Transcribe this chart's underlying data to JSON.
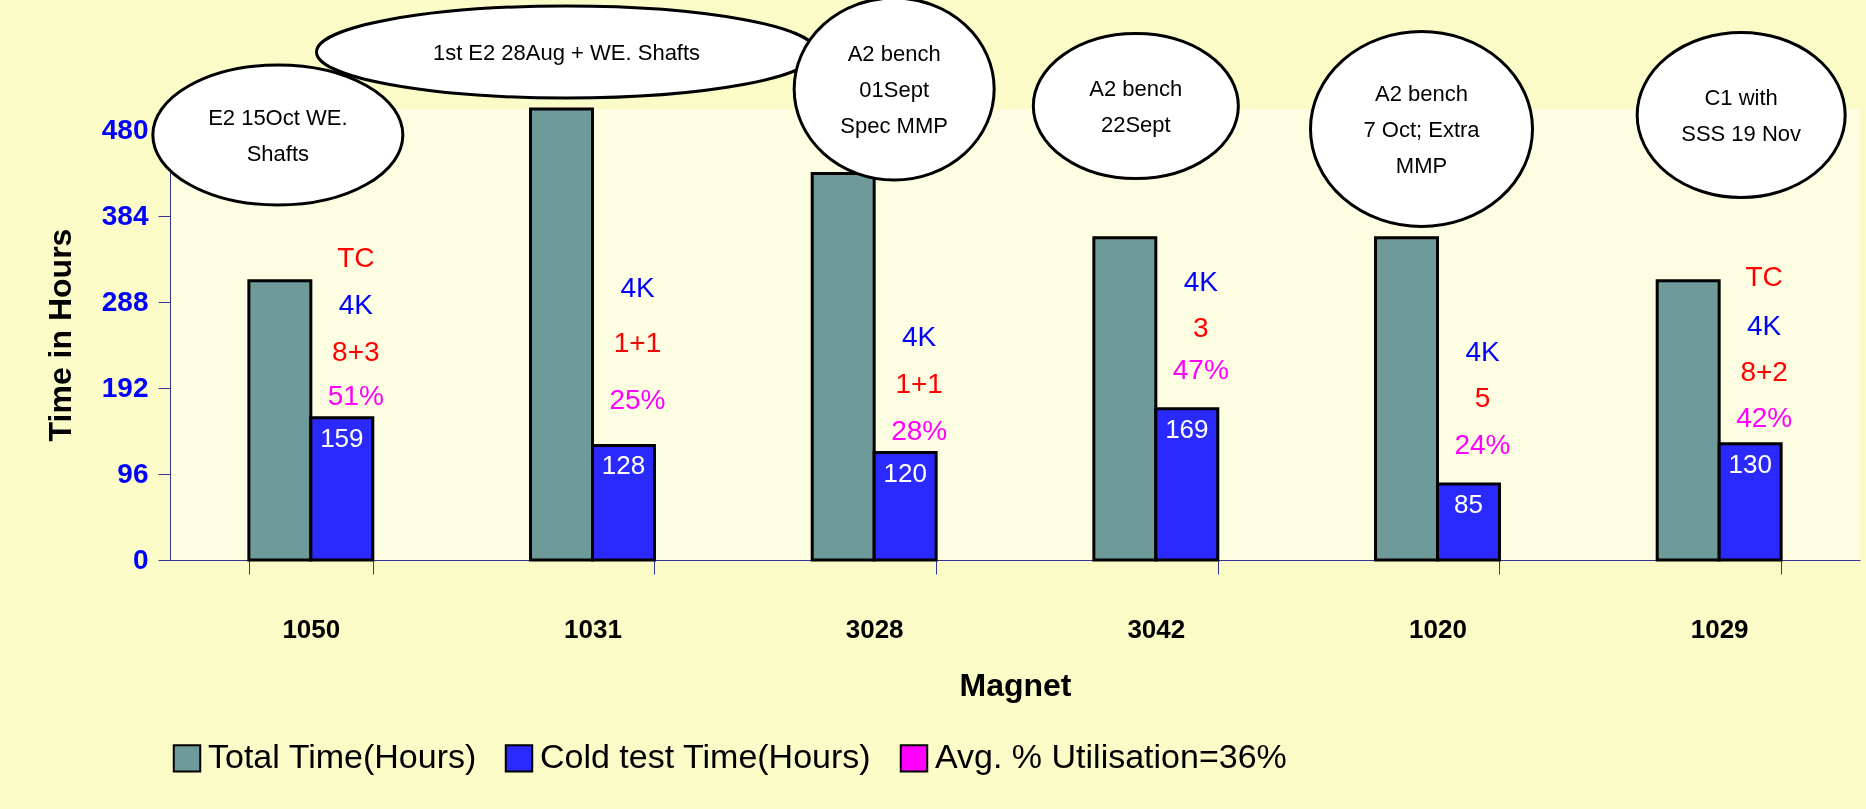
{
  "chart_data": {
    "type": "bar",
    "xlabel": "Magnet",
    "ylabel": "Time in Hours",
    "categories": [
      "1050",
      "1031",
      "3028",
      "3042",
      "1020",
      "1029"
    ],
    "series": [
      {
        "name": "Total Time(Hours)",
        "color": "#6f9a9a",
        "values": [
          312,
          504,
          432,
          360,
          360,
          312
        ]
      },
      {
        "name": "Cold test Time(Hours)",
        "color": "#2a2aff",
        "values": [
          159,
          128,
          120,
          169,
          85,
          130
        ],
        "value_labels": [
          "159",
          "128",
          "120",
          "169",
          "85",
          "130"
        ]
      },
      {
        "name": "Avg. % Utilisation=36%",
        "color": "#ff00ff",
        "values": [
          null,
          null,
          null,
          null,
          null,
          null
        ]
      }
    ],
    "ylim": [
      0,
      504
    ],
    "yticks": [
      0,
      96,
      192,
      288,
      384,
      480
    ],
    "grid": false,
    "legend": "bottom",
    "annotations": [
      "E2 15Oct WE.\nShafts",
      "1st E2 28Aug + WE. Shafts",
      "A2 bench\n01Sept\nSpec MMP",
      "A2 bench\n22Sept",
      "A2 bench\n7 Oct; Extra\nMMP",
      "C1 with\nSSS 19 Nov",
      "TC",
      "4K",
      "8+3",
      "51%",
      "4K",
      "1+1",
      "25%",
      "4K",
      "1+1",
      "28%",
      "4K",
      "3",
      "47%",
      "4K",
      "5",
      "24%",
      "TC",
      "4K",
      "8+2",
      "42%"
    ]
  }
}
